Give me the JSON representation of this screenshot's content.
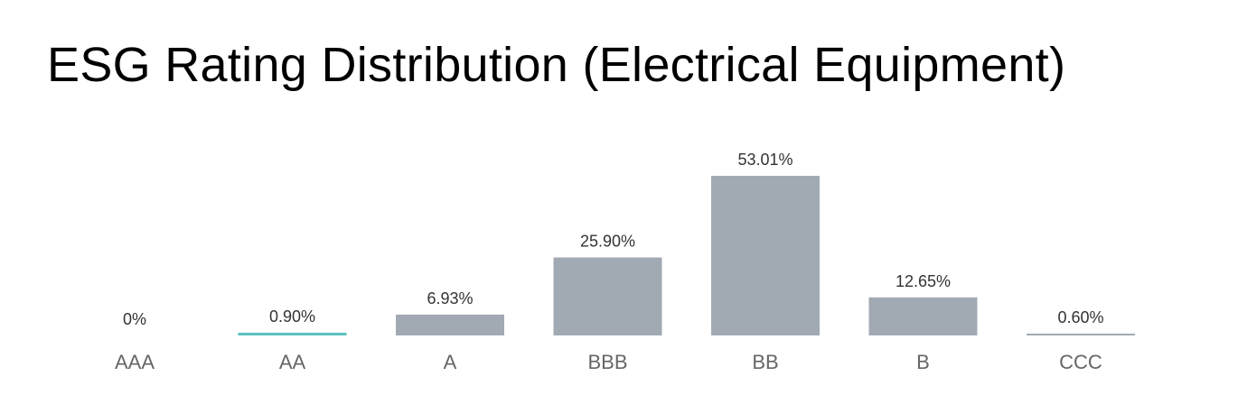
{
  "title": "ESG Rating Distribution (Electrical Equipment)",
  "colors": {
    "bar_default": "#a1aab3",
    "bar_highlight": "#5cc1c0"
  },
  "chart_data": {
    "type": "bar",
    "title": "ESG Rating Distribution (Electrical Equipment)",
    "xlabel": "",
    "ylabel": "",
    "categories": [
      "AAA",
      "AA",
      "A",
      "BBB",
      "BB",
      "B",
      "CCC"
    ],
    "values": [
      0,
      0.9,
      6.93,
      25.9,
      53.01,
      12.65,
      0.6
    ],
    "value_labels": [
      "0%",
      "0.90%",
      "6.93%",
      "25.90%",
      "53.01%",
      "12.65%",
      "0.60%"
    ],
    "highlight_category": "AA",
    "grid": false,
    "legend": "none",
    "ylim": [
      0,
      53.01
    ]
  }
}
